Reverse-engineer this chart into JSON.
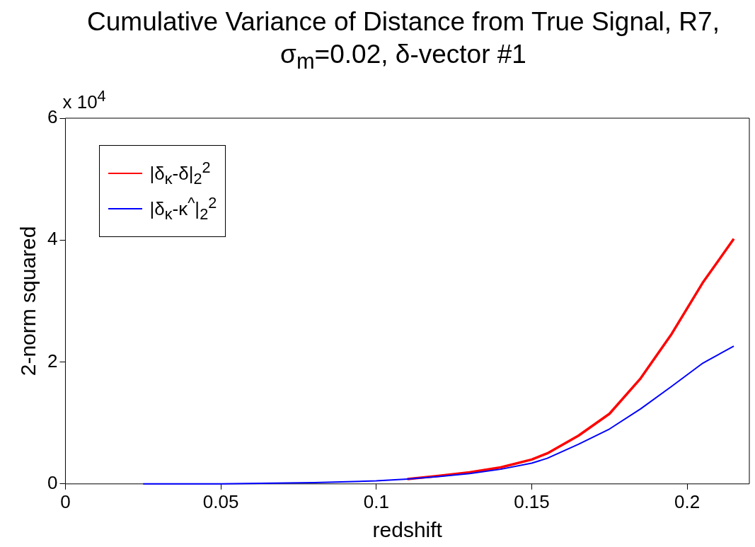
{
  "chart_data": {
    "type": "line",
    "title": "Cumulative Variance of Distance from True Signal, R7, σ$_{m}$=0.02, δ-vector #1",
    "xlabel": "redshift",
    "ylabel": "2-norm squared",
    "annotations": [
      "x 10$^{4}$"
    ],
    "x": [
      0.025,
      0.05,
      0.08,
      0.1,
      0.11,
      0.12,
      0.13,
      0.14,
      0.15,
      0.155,
      0.165,
      0.175,
      0.185,
      0.195,
      0.205,
      0.215
    ],
    "series": [
      {
        "name": "|δ$_{κ}$-δ|$_{2}$$^{2}$",
        "color": "#ff0000",
        "values": [
          null,
          null,
          null,
          null,
          0.08,
          0.13,
          0.19,
          0.27,
          0.4,
          0.5,
          0.79,
          1.15,
          1.73,
          2.46,
          3.3,
          4.02
        ]
      },
      {
        "name": "|δ$_{κ}$-κ$^{^}$|$_{2}$$^{2}$",
        "color": "#0000ff",
        "values": [
          0,
          0,
          0.02,
          0.05,
          0.08,
          0.12,
          0.17,
          0.24,
          0.34,
          0.42,
          0.65,
          0.9,
          1.23,
          1.6,
          1.98,
          2.26
        ]
      }
    ],
    "xlim": [
      0,
      0.22
    ],
    "xticks": [
      0,
      0.05,
      0.1,
      0.15,
      0.2
    ],
    "ylim": [
      0,
      6
    ],
    "yticks": [
      0,
      2,
      4,
      6
    ],
    "grid": false,
    "legend": "top left",
    "marker": "none",
    "line_style": "solid"
  }
}
